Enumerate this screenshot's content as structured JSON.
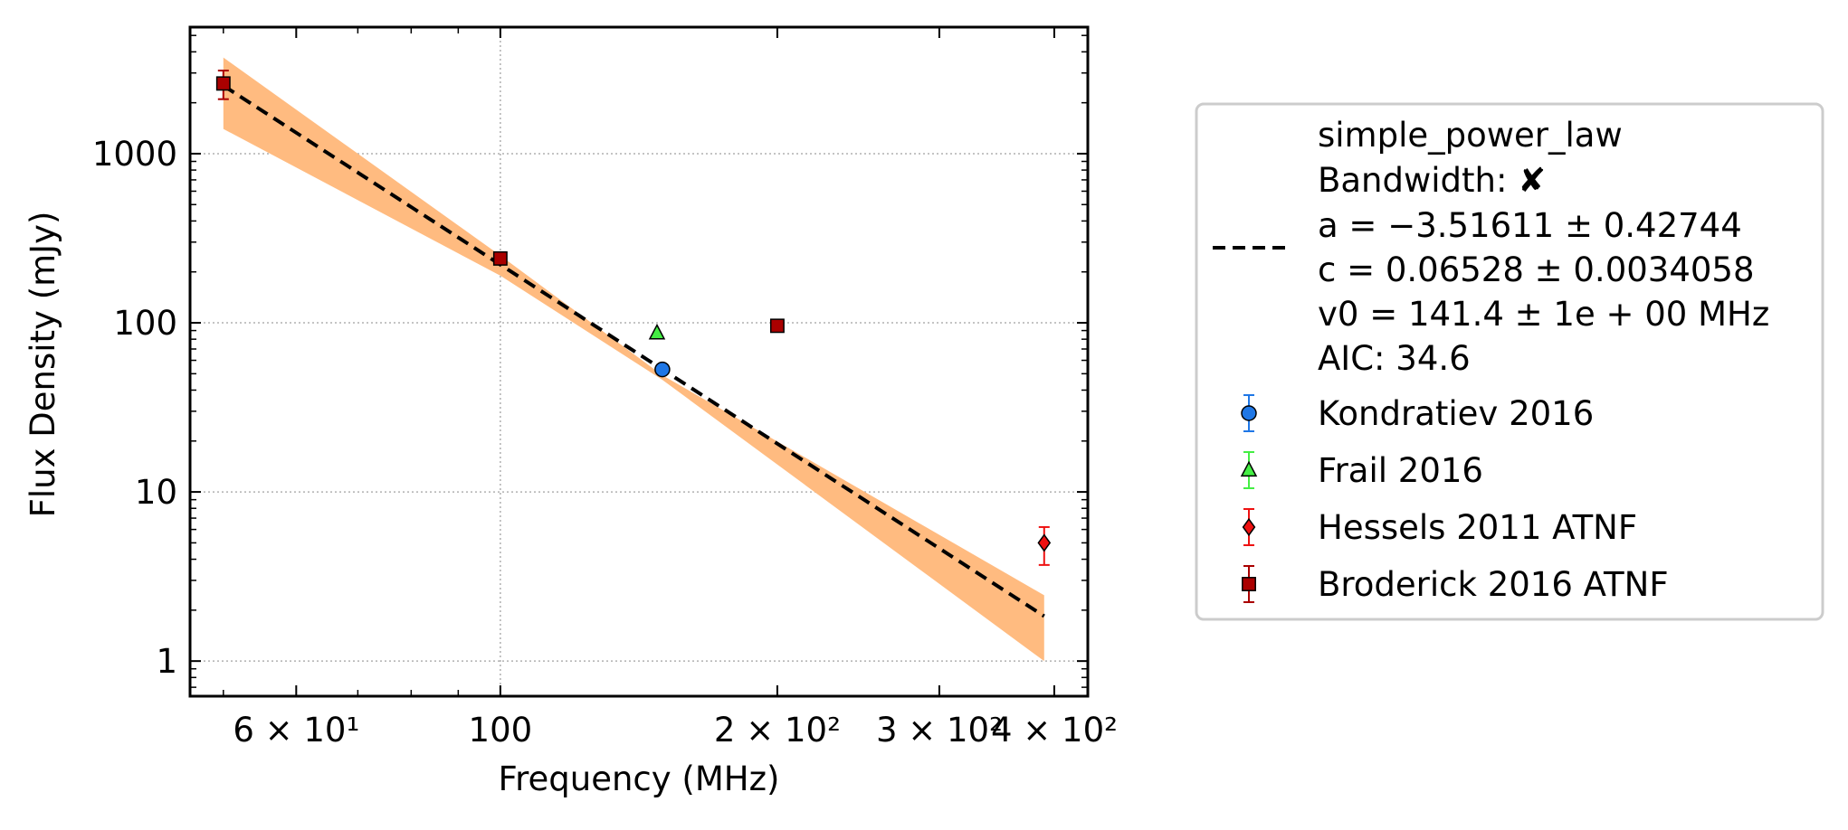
{
  "chart_data": {
    "type": "scatter",
    "xlabel": "Frequency (MHz)",
    "ylabel": "Flux Density (mJy)",
    "x_scale": "log",
    "y_scale": "log",
    "xlim": [
      46.0,
      435.0
    ],
    "ylim": [
      0.62,
      5600
    ],
    "grid": true,
    "legend_position": "right, outside plot",
    "x_ticks": [
      {
        "value": 60,
        "label": "6 × 10¹"
      },
      {
        "value": 100,
        "label": "100"
      },
      {
        "value": 200,
        "label": "2 × 10²"
      },
      {
        "value": 300,
        "label": "3 × 10²"
      },
      {
        "value": 400,
        "label": "4 × 10²"
      }
    ],
    "y_ticks": [
      {
        "value": 1,
        "label": "1"
      },
      {
        "value": 10,
        "label": "10"
      },
      {
        "value": 100,
        "label": "100"
      },
      {
        "value": 1000,
        "label": "1000"
      }
    ],
    "fit": {
      "model_name": "simple_power_law",
      "bandwidth_label": "Bandwidth:",
      "bandwidth_mark": "✘",
      "params": [
        "a = −3.51611 ± 0.42744",
        "c = 0.06528 ± 0.0034058",
        "v0 = 141.4 ± 1e + 00 MHz",
        "AIC: 34.6"
      ],
      "a": -3.51611,
      "c": 0.06528,
      "v0": 141.4,
      "x_range": [
        50,
        390
      ],
      "line_color": "#000000",
      "band_color": "#ffbb80",
      "band": [
        {
          "x": 50,
          "lo": 1400,
          "hi": 3700
        },
        {
          "x": 100,
          "lo": 190,
          "hi": 250
        },
        {
          "x": 150,
          "lo": 46,
          "hi": 49
        },
        {
          "x": 390,
          "lo": 1.0,
          "hi": 2.45
        }
      ]
    },
    "series": [
      {
        "name": "Kondratiev 2016",
        "marker": "circle",
        "color": "#1f77e6",
        "error_color": "#1f77e6",
        "points": [
          {
            "x": 150,
            "y": 53,
            "yerr_lo": 0,
            "yerr_hi": 0
          }
        ]
      },
      {
        "name": "Frail 2016",
        "marker": "triangle",
        "color": "#44ee44",
        "error_color": "#44ee44",
        "points": [
          {
            "x": 148,
            "y": 87,
            "yerr_lo": 0,
            "yerr_hi": 0
          }
        ]
      },
      {
        "name": "Hessels 2011 ATNF",
        "marker": "diamond",
        "color": "#ee1111",
        "error_color": "#ee1111",
        "points": [
          {
            "x": 390,
            "y": 5.0,
            "yerr_lo": 1.3,
            "yerr_hi": 1.2
          }
        ]
      },
      {
        "name": "Broderick 2016 ATNF",
        "marker": "square",
        "color": "#aa0000",
        "error_color": "#aa0000",
        "points": [
          {
            "x": 50,
            "y": 2600,
            "yerr_lo": 500,
            "yerr_hi": 500
          },
          {
            "x": 100,
            "y": 240,
            "yerr_lo": 0,
            "yerr_hi": 0
          },
          {
            "x": 200,
            "y": 96,
            "yerr_lo": 0,
            "yerr_hi": 0
          }
        ]
      }
    ]
  }
}
